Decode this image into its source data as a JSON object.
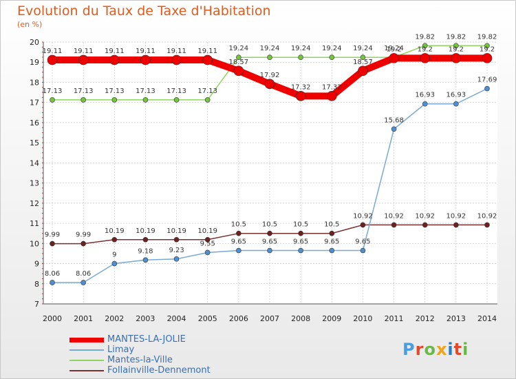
{
  "header": {
    "title": "Evolution du Taux de Taxe d'Habitation",
    "subtitle": "(en %)"
  },
  "logo": {
    "text": "Proxiti",
    "colors": [
      "#4a9de0",
      "#e24a2d",
      "#69b84a",
      "#f0a41b",
      "#2b7cc4",
      "#e24a2d",
      "#69b84a"
    ]
  },
  "chart_data": {
    "type": "line",
    "title": "Evolution du Taux de Taxe d'Habitation",
    "subtitle": "(en %)",
    "x": [
      "2000",
      "2001",
      "2002",
      "2003",
      "2004",
      "2005",
      "2006",
      "2007",
      "2008",
      "2009",
      "2010",
      "2011",
      "2012",
      "2013",
      "2014"
    ],
    "ylim": [
      7,
      20
    ],
    "yticks": [
      "7",
      "8",
      "9",
      "10",
      "11",
      "12",
      "13",
      "14",
      "15",
      "16",
      "17",
      "18",
      "19",
      "20"
    ],
    "grid": true,
    "legend_position": "bottom-left",
    "series": [
      {
        "name": "MANTES-LA-JOLIE",
        "color": "#ee0000",
        "values": [
          19.11,
          19.11,
          19.11,
          19.11,
          19.11,
          19.11,
          18.57,
          17.92,
          17.32,
          17.32,
          18.57,
          19.2,
          19.2,
          19.2,
          19.2
        ],
        "labels": [
          "19.11",
          "19.11",
          "19.11",
          "19.11",
          "19.11",
          "19.11",
          "18.57",
          "17.92",
          "17.32",
          "17.32",
          "18.57",
          "19.2",
          "19.2",
          "19.2",
          "19.2"
        ]
      },
      {
        "name": "Limay",
        "color": "#78a9d4",
        "values": [
          8.06,
          8.06,
          9,
          9.18,
          9.23,
          9.55,
          9.65,
          9.65,
          9.65,
          9.65,
          9.65,
          15.68,
          16.93,
          16.93,
          17.69
        ],
        "labels": [
          "8.06",
          "8.06",
          "9",
          "9.18",
          "9.23",
          "9.55",
          "9.65",
          "9.65",
          "9.65",
          "9.65",
          "9.65",
          "15.68",
          "16.93",
          "16.93",
          "17.69"
        ]
      },
      {
        "name": "Mantes-la-Ville",
        "color": "#8fd45f",
        "values": [
          17.13,
          17.13,
          17.13,
          17.13,
          17.13,
          17.13,
          19.24,
          19.24,
          19.24,
          19.24,
          19.24,
          19.24,
          19.82,
          19.82,
          19.82
        ],
        "labels": [
          "17.13",
          "17.13",
          "17.13",
          "17.13",
          "17.13",
          "17.13",
          "19.24",
          "19.24",
          "19.24",
          "19.24",
          "19.24",
          "19.24",
          "19.82",
          "19.82",
          "19.82"
        ]
      },
      {
        "name": "Follainville-Dennemont",
        "color": "#7a3030",
        "values": [
          9.99,
          9.99,
          10.19,
          10.19,
          10.19,
          10.19,
          10.5,
          10.5,
          10.5,
          10.5,
          10.92,
          10.92,
          10.92,
          10.92,
          10.92
        ],
        "labels": [
          "9.99",
          "9.99",
          "10.19",
          "10.19",
          "10.19",
          "10.19",
          "10.5",
          "10.5",
          "10.5",
          "10.5",
          "10.92",
          "10.92",
          "10.92",
          "10.92",
          "10.92"
        ]
      }
    ]
  }
}
